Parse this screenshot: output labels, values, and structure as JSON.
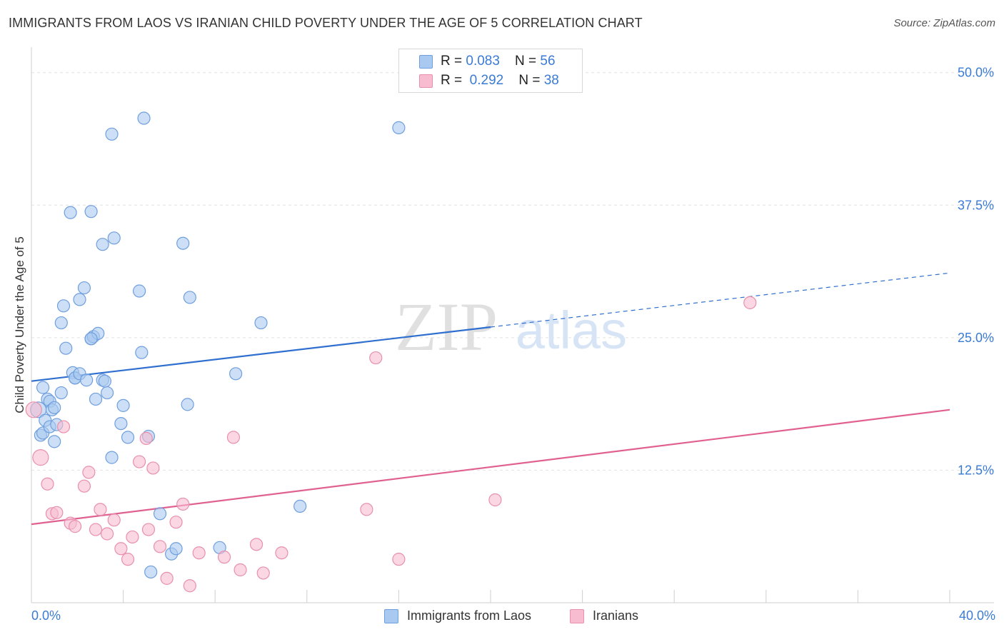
{
  "title": "IMMIGRANTS FROM LAOS VS IRANIAN CHILD POVERTY UNDER THE AGE OF 5 CORRELATION CHART",
  "source": "Source: ZipAtlas.com",
  "watermark": {
    "zip": "ZIP",
    "atlas": "atlas"
  },
  "legend_top": [
    {
      "r_label": "R = ",
      "r_value": "0.083",
      "n_label": "N = ",
      "n_value": "56"
    },
    {
      "r_label": "R = ",
      "r_value": "0.292",
      "n_label": "N = ",
      "n_value": "38"
    }
  ],
  "colors": {
    "blue_fill": "#aac9f0",
    "blue_stroke": "#6f9fde",
    "blue_line": "#2f6fcf",
    "pink_fill": "#f7bcd0",
    "pink_stroke": "#e890ac",
    "pink_line": "#e06090",
    "tick_label": "#3a7bd5",
    "grid": "#e3e3e3"
  },
  "chart_data": {
    "type": "scatter",
    "title": "IMMIGRANTS FROM LAOS VS IRANIAN CHILD POVERTY UNDER THE AGE OF 5 CORRELATION CHART",
    "xlabel": "",
    "ylabel": "Child Poverty Under the Age of 5",
    "xlim": [
      0,
      40
    ],
    "ylim": [
      0,
      52
    ],
    "x_tick_labels": [
      "0.0%",
      "40.0%"
    ],
    "y_ticks": [
      12.5,
      25.0,
      37.5,
      50.0
    ],
    "y_tick_labels": [
      "12.5%",
      "25.0%",
      "37.5%",
      "50.0%"
    ],
    "grid": true,
    "legend_position": "top-center",
    "series": [
      {
        "name": "Immigrants from Laos",
        "r": 0.083,
        "n": 56,
        "trend": {
          "x0": 0,
          "y0": 20.9,
          "x1": 20,
          "y1": 26.0,
          "dashed_to_x": 40,
          "dashed_to_y": 31.1
        },
        "points": [
          [
            0.3,
            18.2
          ],
          [
            0.4,
            15.8
          ],
          [
            0.5,
            16.0
          ],
          [
            0.5,
            20.3
          ],
          [
            0.6,
            17.2
          ],
          [
            0.7,
            19.2
          ],
          [
            0.8,
            19.0
          ],
          [
            0.8,
            16.6
          ],
          [
            0.9,
            18.2
          ],
          [
            1.0,
            18.4
          ],
          [
            1.0,
            15.2
          ],
          [
            1.1,
            16.8
          ],
          [
            1.3,
            26.4
          ],
          [
            1.3,
            19.8
          ],
          [
            1.4,
            28.0
          ],
          [
            1.5,
            24.0
          ],
          [
            1.7,
            36.8
          ],
          [
            1.8,
            21.7
          ],
          [
            1.9,
            21.2
          ],
          [
            1.9,
            21.2
          ],
          [
            2.1,
            21.6
          ],
          [
            2.1,
            28.6
          ],
          [
            2.3,
            29.7
          ],
          [
            2.4,
            21.0
          ],
          [
            2.6,
            36.9
          ],
          [
            2.6,
            24.9
          ],
          [
            2.7,
            25.1
          ],
          [
            2.8,
            19.2
          ],
          [
            2.9,
            25.4
          ],
          [
            3.1,
            21.0
          ],
          [
            3.1,
            33.8
          ],
          [
            3.2,
            20.9
          ],
          [
            3.3,
            19.8
          ],
          [
            3.5,
            44.2
          ],
          [
            3.5,
            13.7
          ],
          [
            3.6,
            34.4
          ],
          [
            3.9,
            16.9
          ],
          [
            4.0,
            18.6
          ],
          [
            4.2,
            15.6
          ],
          [
            4.7,
            29.4
          ],
          [
            4.8,
            23.6
          ],
          [
            4.9,
            45.7
          ],
          [
            5.1,
            15.7
          ],
          [
            5.2,
            2.9
          ],
          [
            5.6,
            8.4
          ],
          [
            6.1,
            4.6
          ],
          [
            6.3,
            5.1
          ],
          [
            6.6,
            33.9
          ],
          [
            6.8,
            18.7
          ],
          [
            6.9,
            28.8
          ],
          [
            8.2,
            5.2
          ],
          [
            8.9,
            21.6
          ],
          [
            10.0,
            26.4
          ],
          [
            11.7,
            9.1
          ],
          [
            16.0,
            44.8
          ],
          [
            2.6,
            24.9
          ]
        ]
      },
      {
        "name": "Iranians",
        "r": 0.292,
        "n": 38,
        "trend": {
          "x0": 0,
          "y0": 7.4,
          "x1": 40,
          "y1": 18.2
        },
        "points": [
          [
            0.1,
            18.2
          ],
          [
            0.4,
            13.7
          ],
          [
            0.7,
            11.2
          ],
          [
            0.9,
            8.4
          ],
          [
            1.1,
            8.5
          ],
          [
            1.4,
            16.6
          ],
          [
            1.7,
            7.5
          ],
          [
            1.9,
            7.2
          ],
          [
            2.3,
            11.0
          ],
          [
            2.5,
            12.3
          ],
          [
            2.8,
            6.9
          ],
          [
            3.0,
            8.8
          ],
          [
            3.3,
            6.5
          ],
          [
            3.6,
            7.8
          ],
          [
            3.9,
            5.1
          ],
          [
            4.2,
            4.1
          ],
          [
            4.4,
            6.2
          ],
          [
            4.7,
            13.3
          ],
          [
            5.0,
            15.5
          ],
          [
            5.1,
            6.9
          ],
          [
            5.3,
            12.7
          ],
          [
            5.6,
            5.3
          ],
          [
            5.9,
            2.3
          ],
          [
            6.3,
            7.6
          ],
          [
            6.6,
            9.3
          ],
          [
            6.9,
            1.6
          ],
          [
            7.3,
            4.7
          ],
          [
            8.4,
            4.3
          ],
          [
            8.8,
            15.6
          ],
          [
            9.1,
            3.1
          ],
          [
            9.8,
            5.5
          ],
          [
            10.1,
            2.8
          ],
          [
            10.9,
            4.7
          ],
          [
            15.0,
            23.1
          ],
          [
            14.6,
            8.8
          ],
          [
            16.0,
            4.1
          ],
          [
            20.2,
            9.7
          ],
          [
            31.3,
            28.3
          ]
        ]
      }
    ]
  }
}
